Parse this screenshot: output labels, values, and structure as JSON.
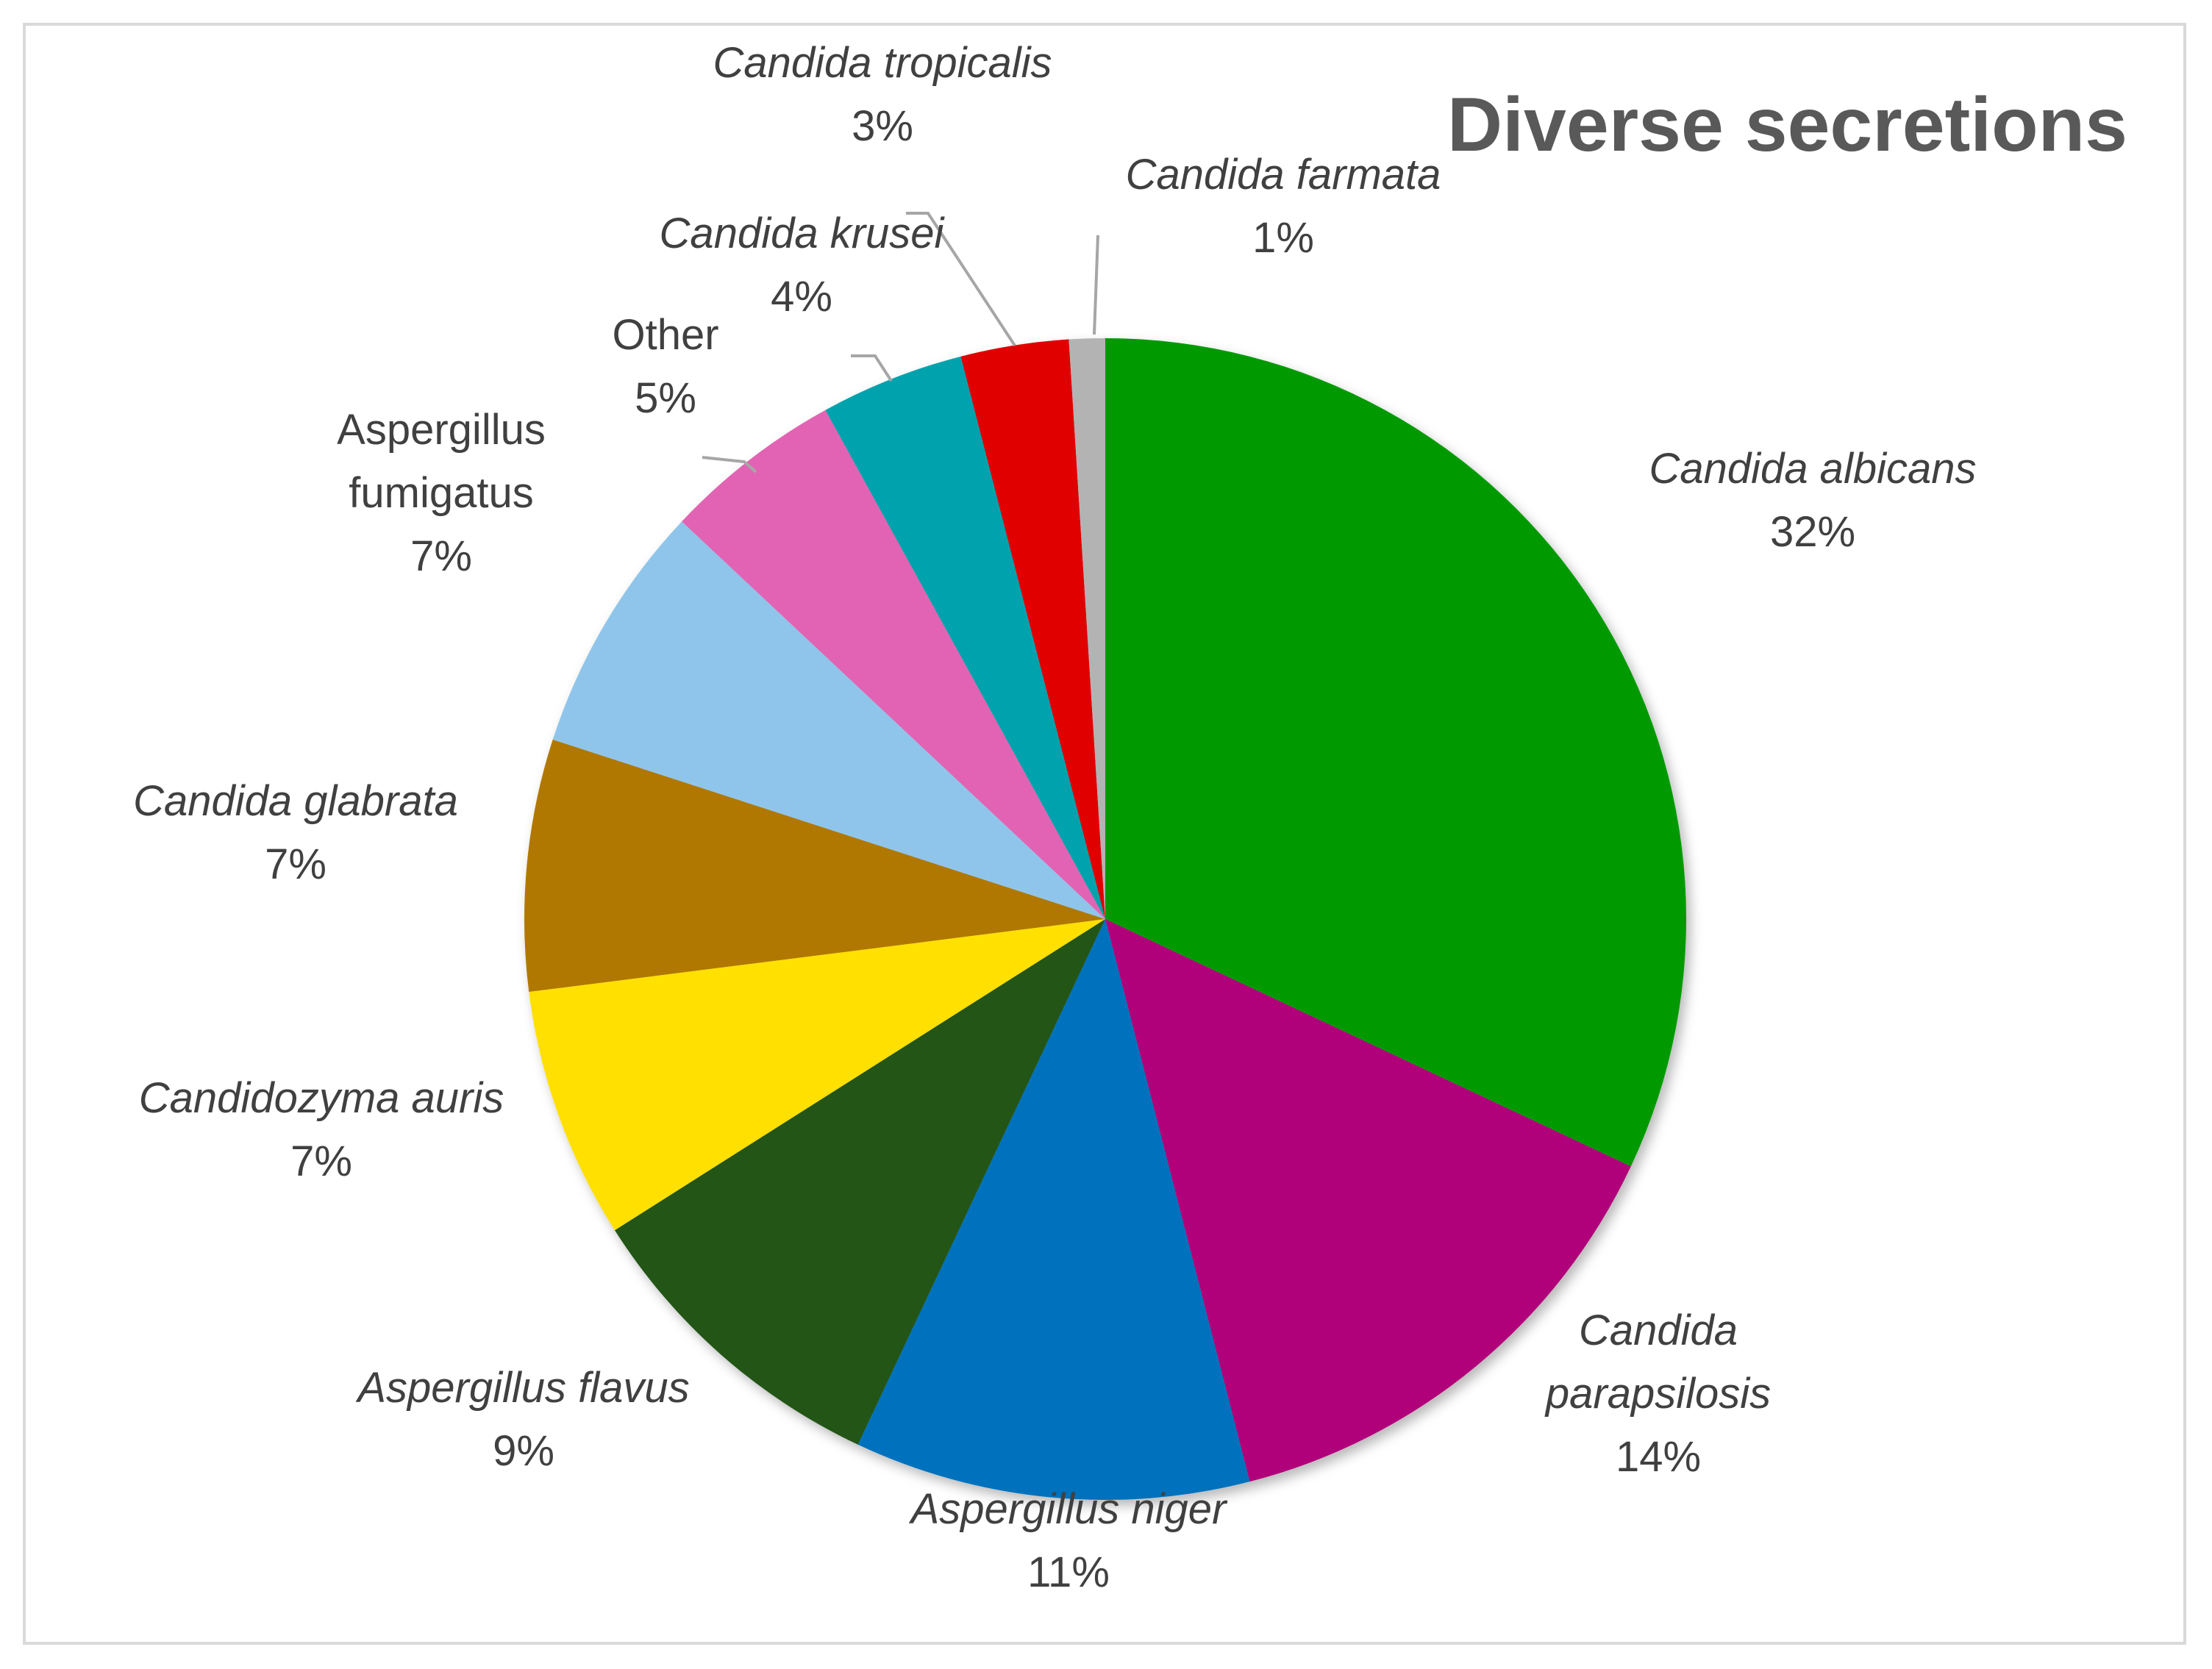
{
  "chart_data": {
    "type": "pie",
    "title": "Diverse secretions",
    "start_angle_deg": 0,
    "direction": "clockwise",
    "slices": [
      {
        "name": "Candida albicans",
        "lines": [
          "Candida albicans"
        ],
        "value": 32,
        "label": "32%",
        "color": "#009a00",
        "italic": true
      },
      {
        "name": "Candida parapsilosis",
        "lines": [
          "Candida",
          "parapsilosis"
        ],
        "value": 14,
        "label": "14%",
        "color": "#b0007a",
        "italic": true
      },
      {
        "name": "Aspergillus niger",
        "lines": [
          "Aspergillus niger"
        ],
        "value": 11,
        "label": "11%",
        "color": "#0071bc",
        "italic": true
      },
      {
        "name": "Aspergillus flavus",
        "lines": [
          "Aspergillus flavus"
        ],
        "value": 9,
        "label": "9%",
        "color": "#215419",
        "italic": true
      },
      {
        "name": "Candidozyma auris",
        "lines": [
          "Candidozyma auris"
        ],
        "value": 7,
        "label": "7%",
        "color": "#ffe000",
        "italic": true
      },
      {
        "name": "Candida glabrata",
        "lines": [
          "Candida glabrata"
        ],
        "value": 7,
        "label": "7%",
        "color": "#b07800",
        "italic": true
      },
      {
        "name": "Aspergillus fumigatus",
        "lines": [
          "Aspergillus",
          "fumigatus"
        ],
        "value": 7,
        "label": "7%",
        "color": "#8fc5ea",
        "italic": false
      },
      {
        "name": "Other",
        "lines": [
          "Other"
        ],
        "value": 5,
        "label": "5%",
        "color": "#e264b3",
        "italic": false
      },
      {
        "name": "Candida krusei",
        "lines": [
          "Candida krusei"
        ],
        "value": 4,
        "label": "4%",
        "color": "#00a2ad",
        "italic": true
      },
      {
        "name": "Candida tropicalis",
        "lines": [
          "Candida tropicalis"
        ],
        "value": 3,
        "label": "3%",
        "color": "#e00000",
        "italic": true
      },
      {
        "name": "Candida farmata",
        "lines": [
          "Candida farmata"
        ],
        "value": 1,
        "label": "1%",
        "color": "#b3b3b3",
        "italic": true
      }
    ]
  }
}
